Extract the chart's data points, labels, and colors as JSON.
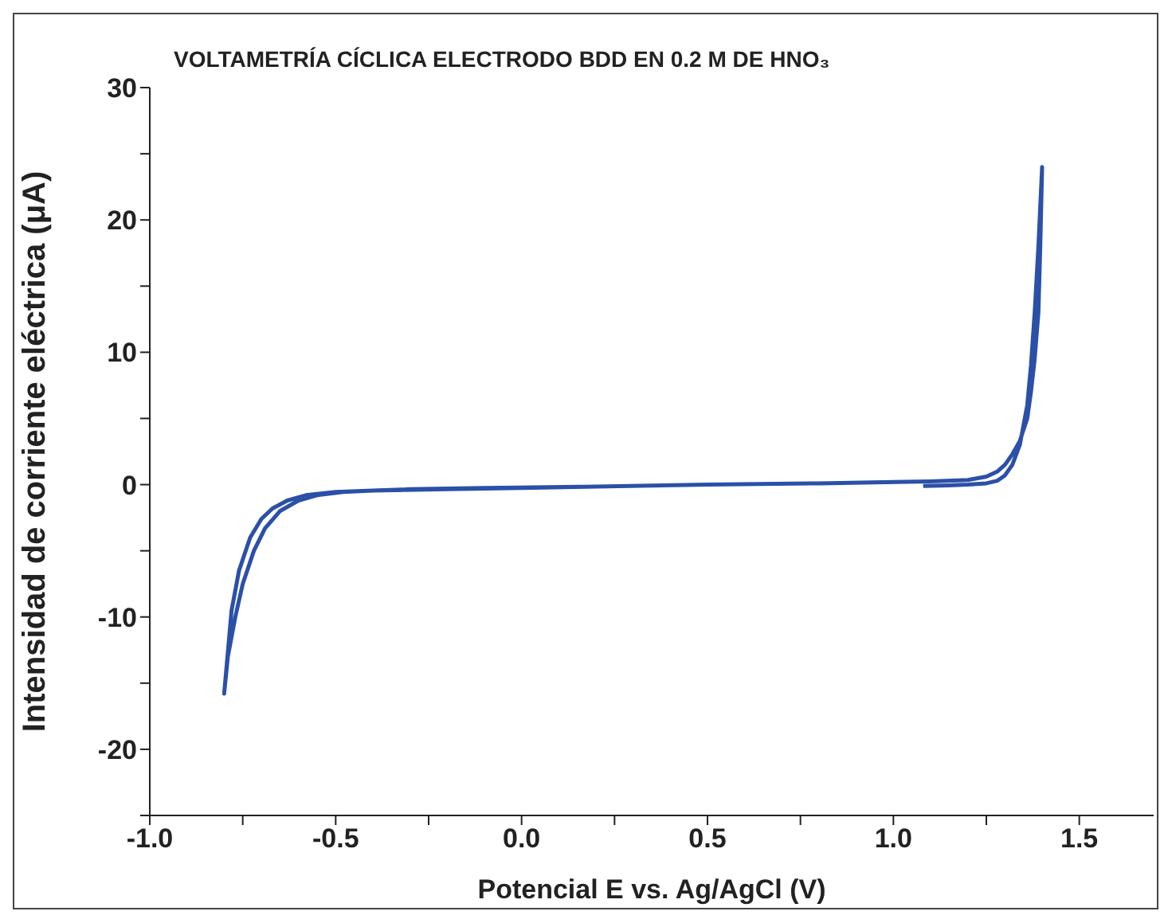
{
  "chart_data": {
    "type": "line",
    "title": "VOLTAMETRÍA CÍCLICA ELECTRODO BDD EN 0.2 M DE HNO₃",
    "xlabel": "Potencial E vs. Ag/AgCl (V)",
    "ylabel": "Intensidad de corriente eléctrica (μA)",
    "xlim": [
      -1.0,
      1.7
    ],
    "xticks": [
      {
        "value": -1,
        "label": "-1.0"
      },
      {
        "value": -0.75,
        "label": null
      },
      -0.5,
      {
        "value": -0.25,
        "label": null
      },
      {
        "value": 0,
        "label": "0.0"
      },
      {
        "value": 0.25,
        "label": null
      },
      0.5,
      {
        "value": 0.75,
        "label": null
      },
      {
        "value": 1,
        "label": "1.0"
      },
      {
        "value": 1.25,
        "label": null
      },
      1.5
    ],
    "ylim": [
      -25,
      30
    ],
    "yticks": [
      {
        "value": -25,
        "label": null
      },
      -20,
      {
        "value": -15,
        "label": null
      },
      -10,
      {
        "value": -5,
        "label": null
      },
      0,
      {
        "value": 5,
        "label": null
      },
      10,
      {
        "value": 15,
        "label": null
      },
      20,
      {
        "value": 25,
        "label": null
      },
      30
    ],
    "grid": false,
    "legend": false,
    "marker": "none",
    "line_style": "solid",
    "series": [
      {
        "color": "#2b50a8",
        "x": [
          1.08,
          1.15,
          1.2,
          1.25,
          1.28,
          1.3,
          1.32,
          1.34,
          1.36,
          1.37,
          1.38,
          1.39,
          1.4,
          1.395,
          1.39,
          1.38,
          1.37,
          1.36,
          1.34,
          1.32,
          1.3,
          1.28,
          1.25,
          1.2,
          1.1,
          0.8,
          0.5,
          0.2,
          0.0,
          -0.2,
          -0.4,
          -0.5,
          -0.58,
          -0.63,
          -0.67,
          -0.7,
          -0.73,
          -0.76,
          -0.78,
          -0.8,
          -0.79,
          -0.77,
          -0.75,
          -0.72,
          -0.69,
          -0.65,
          -0.6,
          -0.55,
          -0.48,
          -0.4,
          -0.3,
          -0.1,
          0.2,
          0.5,
          0.8,
          1.0,
          1.1
        ],
        "values": [
          -0.1,
          -0.05,
          0.0,
          0.1,
          0.3,
          0.7,
          1.5,
          3.0,
          6.0,
          9.0,
          13.0,
          18.0,
          24.0,
          18.0,
          13.0,
          9.5,
          7.0,
          5.0,
          3.3,
          2.3,
          1.5,
          1.0,
          0.6,
          0.35,
          0.25,
          0.1,
          0.0,
          -0.15,
          -0.25,
          -0.35,
          -0.45,
          -0.55,
          -0.8,
          -1.2,
          -1.8,
          -2.6,
          -4.0,
          -6.5,
          -9.5,
          -15.8,
          -13.0,
          -10.0,
          -7.5,
          -5.0,
          -3.3,
          -2.0,
          -1.2,
          -0.8,
          -0.55,
          -0.45,
          -0.35,
          -0.25,
          -0.15,
          0.0,
          0.1,
          0.2,
          0.25
        ]
      }
    ]
  }
}
